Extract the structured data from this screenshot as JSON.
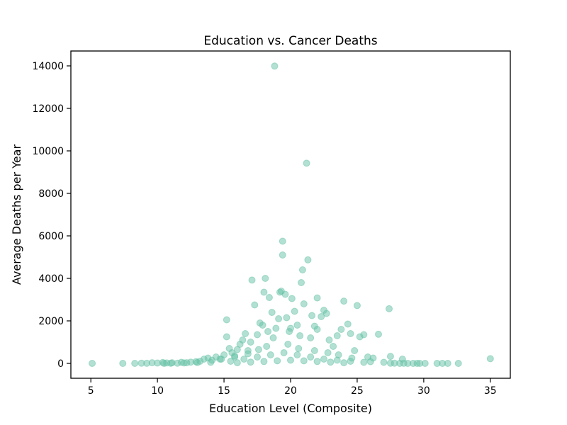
{
  "chart_data": {
    "type": "scatter",
    "title": "Education vs. Cancer Deaths",
    "xlabel": "Education Level (Composite)",
    "ylabel": "Average Deaths per Year",
    "xlim": [
      3.5,
      36.5
    ],
    "ylim": [
      -700,
      14700
    ],
    "xticks": [
      5,
      10,
      15,
      20,
      25,
      30,
      35
    ],
    "yticks": [
      0,
      2000,
      4000,
      6000,
      8000,
      10000,
      12000,
      14000
    ],
    "grid": false,
    "legend": "none",
    "point_color": "#66c2a5",
    "point_opacity": 0.5,
    "series": [
      {
        "points": [
          [
            5.1,
            0
          ],
          [
            7.4,
            0
          ],
          [
            8.3,
            0
          ],
          [
            8.8,
            10
          ],
          [
            9.2,
            5
          ],
          [
            9.6,
            30
          ],
          [
            10.0,
            15
          ],
          [
            10.4,
            40
          ],
          [
            10.7,
            20
          ],
          [
            11.1,
            30
          ],
          [
            11.5,
            10
          ],
          [
            11.8,
            50
          ],
          [
            12.2,
            30
          ],
          [
            12.5,
            60
          ],
          [
            12.9,
            80
          ],
          [
            13.2,
            100
          ],
          [
            13.5,
            200
          ],
          [
            13.8,
            250
          ],
          [
            14.1,
            150
          ],
          [
            14.4,
            300
          ],
          [
            14.7,
            200
          ],
          [
            15.0,
            400
          ],
          [
            15.2,
            2050
          ],
          [
            15.2,
            1250
          ],
          [
            15.4,
            700
          ],
          [
            15.6,
            500
          ],
          [
            15.8,
            300
          ],
          [
            16.0,
            650
          ],
          [
            16.2,
            900
          ],
          [
            16.4,
            1100
          ],
          [
            16.6,
            1400
          ],
          [
            16.8,
            600
          ],
          [
            17.0,
            1000
          ],
          [
            17.1,
            3920
          ],
          [
            17.3,
            2750
          ],
          [
            17.5,
            1350
          ],
          [
            17.7,
            1900
          ],
          [
            17.9,
            1800
          ],
          [
            18.0,
            3350
          ],
          [
            18.1,
            4000
          ],
          [
            18.3,
            1500
          ],
          [
            18.4,
            3100
          ],
          [
            18.6,
            2400
          ],
          [
            18.7,
            1200
          ],
          [
            18.8,
            13990
          ],
          [
            18.9,
            1650
          ],
          [
            19.1,
            2100
          ],
          [
            19.2,
            3350
          ],
          [
            19.3,
            3400
          ],
          [
            19.4,
            5750
          ],
          [
            19.4,
            5100
          ],
          [
            19.6,
            3250
          ],
          [
            19.7,
            2150
          ],
          [
            19.9,
            1500
          ],
          [
            20.0,
            1650
          ],
          [
            20.1,
            3050
          ],
          [
            20.3,
            2450
          ],
          [
            20.5,
            1800
          ],
          [
            20.7,
            1300
          ],
          [
            20.8,
            3800
          ],
          [
            20.9,
            4400
          ],
          [
            21.0,
            2800
          ],
          [
            21.2,
            9420
          ],
          [
            21.3,
            4870
          ],
          [
            21.5,
            1200
          ],
          [
            21.6,
            2250
          ],
          [
            21.8,
            1750
          ],
          [
            22.0,
            1600
          ],
          [
            22.0,
            3080
          ],
          [
            22.3,
            2200
          ],
          [
            22.5,
            2500
          ],
          [
            22.7,
            2350
          ],
          [
            22.9,
            1100
          ],
          [
            23.2,
            800
          ],
          [
            23.5,
            1300
          ],
          [
            23.8,
            1600
          ],
          [
            24.0,
            2930
          ],
          [
            24.3,
            1850
          ],
          [
            24.5,
            1400
          ],
          [
            24.8,
            600
          ],
          [
            25.0,
            2720
          ],
          [
            25.2,
            1250
          ],
          [
            25.5,
            1350
          ],
          [
            25.8,
            300
          ],
          [
            26.2,
            250
          ],
          [
            26.6,
            1370
          ],
          [
            27.0,
            50
          ],
          [
            27.4,
            2570
          ],
          [
            27.5,
            330
          ],
          [
            27.8,
            10
          ],
          [
            28.2,
            0
          ],
          [
            28.4,
            200
          ],
          [
            28.8,
            0
          ],
          [
            29.2,
            0
          ],
          [
            29.7,
            0
          ],
          [
            30.1,
            0
          ],
          [
            31.0,
            0
          ],
          [
            31.4,
            0
          ],
          [
            31.8,
            0
          ],
          [
            32.6,
            0
          ],
          [
            35.0,
            220
          ],
          [
            14.0,
            50
          ],
          [
            15.5,
            100
          ],
          [
            16.5,
            200
          ],
          [
            17.5,
            300
          ],
          [
            18.5,
            400
          ],
          [
            19.5,
            500
          ],
          [
            20.5,
            400
          ],
          [
            21.5,
            300
          ],
          [
            22.5,
            200
          ],
          [
            23.5,
            150
          ],
          [
            24.5,
            100
          ],
          [
            25.5,
            50
          ],
          [
            16.0,
            30
          ],
          [
            17.0,
            60
          ],
          [
            18.0,
            90
          ],
          [
            19.0,
            120
          ],
          [
            20.0,
            150
          ],
          [
            21.0,
            120
          ],
          [
            22.0,
            90
          ],
          [
            23.0,
            60
          ],
          [
            24.0,
            30
          ],
          [
            18.2,
            800
          ],
          [
            19.8,
            900
          ],
          [
            20.6,
            700
          ],
          [
            17.6,
            650
          ],
          [
            21.8,
            600
          ],
          [
            22.8,
            500
          ],
          [
            16.8,
            450
          ],
          [
            23.6,
            400
          ],
          [
            15.8,
            350
          ],
          [
            24.6,
            250
          ],
          [
            14.8,
            200
          ],
          [
            26.0,
            80
          ],
          [
            13.0,
            40
          ],
          [
            12.0,
            20
          ],
          [
            27.5,
            10
          ],
          [
            11.0,
            5
          ],
          [
            28.5,
            5
          ],
          [
            10.5,
            0
          ],
          [
            29.5,
            0
          ]
        ]
      }
    ]
  }
}
